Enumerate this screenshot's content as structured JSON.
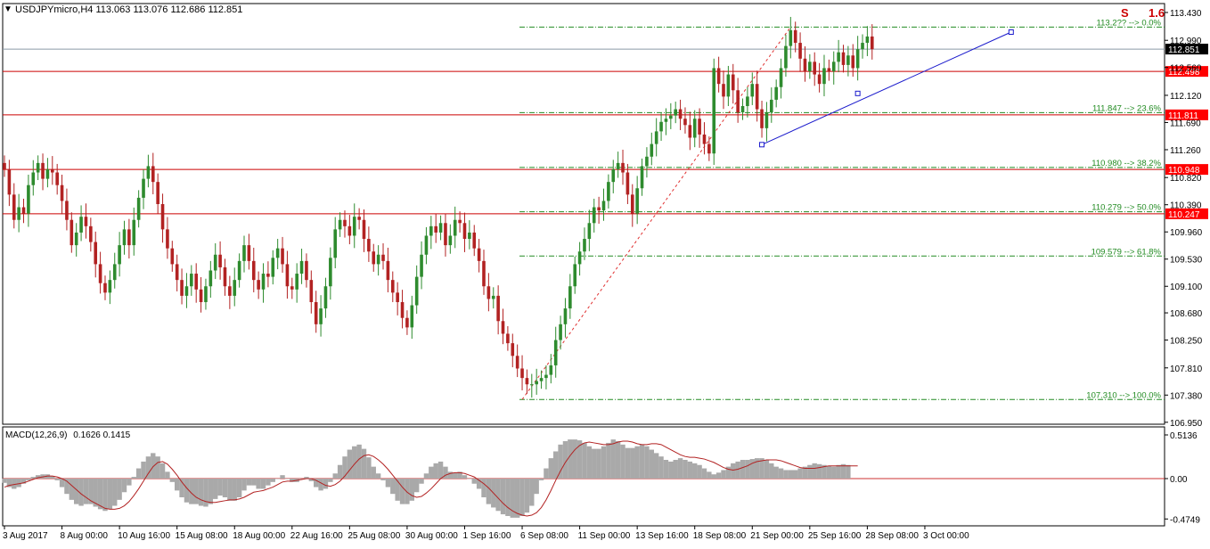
{
  "header": {
    "collapse_glyph": "▼",
    "symbol_text": "USDJPYmicro,H4  113.063 113.076 112.686 112.851"
  },
  "corner_marker": {
    "icon": "signal-marker-icon",
    "label_left": "S",
    "label_right": "1.6"
  },
  "colors": {
    "bull": "#2e8b2e",
    "bear": "#b22222",
    "grid": "#000000",
    "hline": "#cc0000",
    "fib": "#228b22",
    "trend": "#1a1acc",
    "zigzag": "#e03030",
    "macd_hist": "#a9a9a9",
    "macd_signal": "#b22222",
    "current_price_bg": "#000000",
    "hline_label_bg": "#ff0000"
  },
  "chart_data": [
    {
      "type": "candlestick",
      "title": "USDJPYmicro,H4",
      "ohlc_readout": {
        "open": 113.063,
        "high": 113.076,
        "low": 112.686,
        "close": 112.851
      },
      "ylim": [
        107.19,
        113.43
      ],
      "y_ticks": [
        "113.430",
        "112.990",
        "112.560",
        "112.120",
        "111.690",
        "111.260",
        "110.820",
        "110.390",
        "109.960",
        "109.530",
        "109.100",
        "108.680",
        "108.250",
        "107.810",
        "107.380",
        "106.950"
      ],
      "y_tick_values": [
        113.43,
        112.99,
        112.56,
        112.12,
        111.69,
        111.26,
        110.82,
        110.39,
        109.96,
        109.53,
        109.1,
        108.68,
        108.25,
        107.81,
        107.38,
        106.95
      ],
      "x_ticks": [
        "3 Aug 2017",
        "8 Aug 00:00",
        "10 Aug 16:00",
        "15 Aug 08:00",
        "18 Aug 00:00",
        "22 Aug 16:00",
        "25 Aug 08:00",
        "30 Aug 00:00",
        "1 Sep 16:00",
        "6 Sep 08:00",
        "11 Sep 00:00",
        "13 Sep 16:00",
        "18 Sep 08:00",
        "21 Sep 00:00",
        "25 Sep 16:00",
        "28 Sep 08:00",
        "3 Oct 00:00"
      ],
      "x_tick_index": [
        0,
        12,
        24,
        36,
        48,
        60,
        72,
        84,
        96,
        108,
        120,
        132,
        144,
        156,
        168,
        180,
        192
      ],
      "closes": [
        110.95,
        110.55,
        110.15,
        110.35,
        110.25,
        110.7,
        110.9,
        111.05,
        110.8,
        110.95,
        110.9,
        110.7,
        110.45,
        110.15,
        109.75,
        109.95,
        110.2,
        110.05,
        109.8,
        109.45,
        109.15,
        109.0,
        109.2,
        109.45,
        109.75,
        110.0,
        109.75,
        110.15,
        110.5,
        110.8,
        111.0,
        110.75,
        110.4,
        110.0,
        109.7,
        109.45,
        109.2,
        108.95,
        109.1,
        109.3,
        109.05,
        108.85,
        109.1,
        109.35,
        109.6,
        109.4,
        109.1,
        108.95,
        109.2,
        109.5,
        109.75,
        109.5,
        109.2,
        109.05,
        109.3,
        109.25,
        109.55,
        109.7,
        109.45,
        109.1,
        109.05,
        109.3,
        109.5,
        109.2,
        108.85,
        108.5,
        108.75,
        109.1,
        109.55,
        110.0,
        110.15,
        110.05,
        109.9,
        110.2,
        110.15,
        109.85,
        109.65,
        109.45,
        109.6,
        109.5,
        109.2,
        109.0,
        108.85,
        108.6,
        108.45,
        108.8,
        109.25,
        109.6,
        109.9,
        110.05,
        109.95,
        110.1,
        109.75,
        109.9,
        110.15,
        110.1,
        109.85,
        109.95,
        109.7,
        109.5,
        109.1,
        108.9,
        108.95,
        108.55,
        108.35,
        108.2,
        108.0,
        107.8,
        107.65,
        107.55,
        107.55,
        107.6,
        107.65,
        107.7,
        107.85,
        108.25,
        108.5,
        108.75,
        109.1,
        109.45,
        109.65,
        109.85,
        110.1,
        110.35,
        110.3,
        110.45,
        110.75,
        110.95,
        111.05,
        110.9,
        110.55,
        110.25,
        110.65,
        111.0,
        111.15,
        111.35,
        111.55,
        111.7,
        111.75,
        111.8,
        111.9,
        111.75,
        111.65,
        111.45,
        111.75,
        111.5,
        111.35,
        111.2,
        112.55,
        112.3,
        112.1,
        112.45,
        112.2,
        111.85,
        111.95,
        112.1,
        112.3,
        111.9,
        111.6,
        111.85,
        112.05,
        112.25,
        112.55,
        112.9,
        113.15,
        112.95,
        112.7,
        112.5,
        112.65,
        112.45,
        112.3,
        112.55,
        112.5,
        112.65,
        112.8,
        112.6,
        112.75,
        112.55,
        112.85,
        112.95,
        113.05,
        112.85
      ],
      "candle_rule": "close vs previous close; wicks approx +/- 0.12",
      "horizontal_lines": [
        {
          "price": 112.851,
          "label": "112.851",
          "kind": "current"
        },
        {
          "price": 112.498,
          "label": "112.498",
          "kind": "level"
        },
        {
          "price": 111.811,
          "label": "111.811",
          "kind": "level"
        },
        {
          "price": 110.948,
          "label": "110.948",
          "kind": "level"
        },
        {
          "price": 110.247,
          "label": "110.247",
          "kind": "level"
        }
      ],
      "fibonacci": {
        "anchor_low_price": 107.31,
        "anchor_low_index": 108,
        "anchor_high_price": 113.2,
        "anchor_high_index": 164,
        "levels": [
          {
            "price": 113.2,
            "label": "113.2?? --> 0.0%"
          },
          {
            "price": 111.847,
            "label": "111.847 --> 23.6%"
          },
          {
            "price": 110.98,
            "label": "110.980 --> 38.2%"
          },
          {
            "price": 110.279,
            "label": "110.279 --> 50.0%"
          },
          {
            "price": 109.579,
            "label": "109.579 --> 61.8%"
          },
          {
            "price": 107.31,
            "label": "107.310 --> 100.0%"
          }
        ]
      },
      "trendline": {
        "points": [
          {
            "index": 158,
            "price": 111.34
          },
          {
            "index": 178,
            "price": 112.15
          },
          {
            "index": 210,
            "price": 113.12
          }
        ]
      }
    },
    {
      "type": "histogram_line",
      "title": "MACD(12,26,9) 0.1626 0.1415",
      "label_main": "MACD(12,26,9)",
      "label_values": "0.1626 0.1415",
      "ylim": [
        -0.5,
        0.55
      ],
      "y_ticks": [
        "0.5136",
        "0.00",
        "-0.4749"
      ],
      "y_tick_values": [
        0.5136,
        0.0,
        -0.4749
      ],
      "histogram": [
        -0.05,
        -0.1,
        -0.12,
        -0.1,
        -0.06,
        -0.02,
        0.02,
        0.04,
        0.05,
        0.05,
        0.03,
        -0.02,
        -0.1,
        -0.18,
        -0.25,
        -0.3,
        -0.32,
        -0.3,
        -0.3,
        -0.33,
        -0.36,
        -0.38,
        -0.36,
        -0.32,
        -0.25,
        -0.16,
        -0.08,
        0.02,
        0.12,
        0.2,
        0.26,
        0.3,
        0.26,
        0.18,
        0.08,
        -0.04,
        -0.14,
        -0.22,
        -0.28,
        -0.3,
        -0.3,
        -0.32,
        -0.33,
        -0.3,
        -0.24,
        -0.2,
        -0.22,
        -0.26,
        -0.26,
        -0.22,
        -0.14,
        -0.08,
        -0.08,
        -0.12,
        -0.12,
        -0.08,
        -0.04,
        0.0,
        0.04,
        0.0,
        -0.04,
        -0.04,
        0.0,
        0.02,
        -0.03,
        -0.1,
        -0.14,
        -0.12,
        -0.04,
        0.06,
        0.16,
        0.26,
        0.34,
        0.38,
        0.4,
        0.35,
        0.25,
        0.14,
        0.06,
        -0.02,
        -0.1,
        -0.18,
        -0.26,
        -0.3,
        -0.3,
        -0.26,
        -0.16,
        -0.06,
        0.06,
        0.14,
        0.18,
        0.2,
        0.14,
        0.08,
        0.07,
        0.08,
        0.04,
        0.0,
        -0.06,
        -0.12,
        -0.22,
        -0.3,
        -0.34,
        -0.38,
        -0.42,
        -0.44,
        -0.46,
        -0.46,
        -0.44,
        -0.4,
        -0.32,
        -0.18,
        -0.02,
        0.12,
        0.24,
        0.32,
        0.4,
        0.44,
        0.46,
        0.46,
        0.45,
        0.42,
        0.38,
        0.35,
        0.35,
        0.38,
        0.42,
        0.46,
        0.44,
        0.4,
        0.36,
        0.36,
        0.38,
        0.4,
        0.38,
        0.34,
        0.3,
        0.26,
        0.22,
        0.2,
        0.22,
        0.24,
        0.22,
        0.2,
        0.18,
        0.16,
        0.12,
        0.08,
        0.05,
        0.07,
        0.1,
        0.14,
        0.18,
        0.2,
        0.22,
        0.22,
        0.23,
        0.24,
        0.24,
        0.22,
        0.18,
        0.14,
        0.12,
        0.1,
        0.1,
        0.1,
        0.12,
        0.14,
        0.16,
        0.18,
        0.17,
        0.16,
        0.15,
        0.14,
        0.16,
        0.17,
        0.16
      ],
      "signal": [
        -0.1,
        -0.08,
        -0.07,
        -0.06,
        -0.05,
        -0.03,
        -0.01,
        0.01,
        0.02,
        0.03,
        0.03,
        0.02,
        0.0,
        -0.03,
        -0.08,
        -0.13,
        -0.18,
        -0.22,
        -0.26,
        -0.29,
        -0.32,
        -0.35,
        -0.36,
        -0.36,
        -0.35,
        -0.32,
        -0.27,
        -0.2,
        -0.12,
        -0.03,
        0.06,
        0.14,
        0.19,
        0.2,
        0.17,
        0.11,
        0.04,
        -0.04,
        -0.11,
        -0.17,
        -0.22,
        -0.25,
        -0.27,
        -0.28,
        -0.28,
        -0.27,
        -0.26,
        -0.25,
        -0.25,
        -0.24,
        -0.22,
        -0.19,
        -0.16,
        -0.15,
        -0.14,
        -0.12,
        -0.1,
        -0.07,
        -0.04,
        -0.03,
        -0.03,
        -0.02,
        -0.01,
        0.0,
        0.0,
        -0.02,
        -0.05,
        -0.08,
        -0.09,
        -0.07,
        -0.03,
        0.03,
        0.1,
        0.17,
        0.23,
        0.27,
        0.28,
        0.26,
        0.22,
        0.17,
        0.11,
        0.04,
        -0.03,
        -0.1,
        -0.16,
        -0.2,
        -0.22,
        -0.21,
        -0.17,
        -0.12,
        -0.06,
        0.0,
        0.04,
        0.06,
        0.07,
        0.07,
        0.06,
        0.04,
        0.02,
        -0.02,
        -0.06,
        -0.11,
        -0.17,
        -0.23,
        -0.29,
        -0.34,
        -0.38,
        -0.41,
        -0.43,
        -0.44,
        -0.43,
        -0.4,
        -0.34,
        -0.25,
        -0.14,
        -0.02,
        0.09,
        0.19,
        0.27,
        0.34,
        0.39,
        0.42,
        0.43,
        0.42,
        0.41,
        0.4,
        0.4,
        0.41,
        0.43,
        0.44,
        0.44,
        0.43,
        0.41,
        0.4,
        0.4,
        0.41,
        0.41,
        0.4,
        0.37,
        0.34,
        0.31,
        0.28,
        0.26,
        0.25,
        0.25,
        0.24,
        0.23,
        0.21,
        0.19,
        0.16,
        0.13,
        0.11,
        0.1,
        0.11,
        0.13,
        0.15,
        0.18,
        0.2,
        0.21,
        0.22,
        0.22,
        0.22,
        0.21,
        0.19,
        0.17,
        0.15,
        0.13,
        0.12,
        0.12,
        0.12,
        0.13,
        0.14,
        0.15,
        0.15,
        0.15,
        0.15,
        0.15,
        0.15,
        0.15
      ]
    }
  ]
}
